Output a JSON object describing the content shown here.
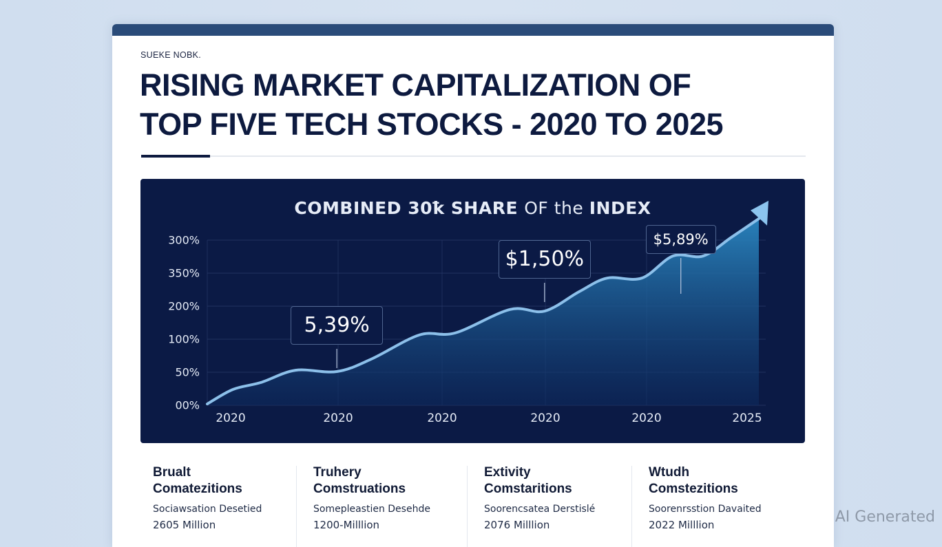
{
  "header": {
    "kicker": "SUEKE NOBK.",
    "title_lines": [
      "RISING MARKET CAPITALIZATION OF",
      "TOP FIVE TECH STOCKS - 2020 TO 2025"
    ]
  },
  "colors": {
    "page_background": "#d3e0f0",
    "top_bar": "#2a4b79",
    "title_text": "#0d1a3f",
    "chart_background": "#0b1a45",
    "line": "#8cc0ea",
    "area_top": "#2a86c0",
    "area_bottom": "#0d2a5e",
    "arrow": "#8cc4ee"
  },
  "chart_data": {
    "type": "area",
    "title_parts": [
      {
        "text": "COMBINED 30ꝁ SHARE ",
        "weight": "bold"
      },
      {
        "text": "OF the ",
        "weight": "light"
      },
      {
        "text": "INDEX",
        "weight": "bold"
      }
    ],
    "xlabel": "",
    "ylabel": "",
    "x_tick_labels": [
      "2020",
      "2020",
      "2020",
      "2020",
      "2020",
      "2025"
    ],
    "y_tick_labels": [
      "00%",
      "50%",
      "100%",
      "200%",
      "350%",
      "300%"
    ],
    "y_scale_note": "values below are expressed in y-tick index units (0 = '00%', 5 = '300%') because printed tick labels are non-monotonic",
    "x_range": [
      2020,
      2025
    ],
    "y_range": [
      0,
      5.9
    ],
    "grid": true,
    "legend": "none",
    "series": [
      {
        "name": "Combined share",
        "points": [
          {
            "x": 2020.0,
            "y": 0.04
          },
          {
            "x": 2020.23,
            "y": 0.48
          },
          {
            "x": 2020.48,
            "y": 0.69
          },
          {
            "x": 2020.79,
            "y": 1.06
          },
          {
            "x": 2021.16,
            "y": 1.02
          },
          {
            "x": 2021.47,
            "y": 1.4
          },
          {
            "x": 2021.9,
            "y": 2.13
          },
          {
            "x": 2022.22,
            "y": 2.19
          },
          {
            "x": 2022.71,
            "y": 2.9
          },
          {
            "x": 2023.02,
            "y": 2.85
          },
          {
            "x": 2023.33,
            "y": 3.44
          },
          {
            "x": 2023.58,
            "y": 3.85
          },
          {
            "x": 2023.89,
            "y": 3.85
          },
          {
            "x": 2024.17,
            "y": 4.52
          },
          {
            "x": 2024.44,
            "y": 4.52
          },
          {
            "x": 2024.69,
            "y": 5.08
          },
          {
            "x": 2025.0,
            "y": 5.9
          }
        ],
        "end_arrow": true
      }
    ],
    "annotations": [
      {
        "text": "5,39%",
        "x": 2021.16,
        "size": "large"
      },
      {
        "text": "$1,50%",
        "x": 2023.02,
        "size": "large"
      },
      {
        "text": "$5,89%",
        "x": 2024.24,
        "size": "small"
      }
    ]
  },
  "stats": [
    {
      "head": [
        "Brualt",
        "Comatezitions"
      ],
      "desc": "Sociawsation Desetied",
      "value": "2605 Million"
    },
    {
      "head": [
        "Truhery",
        "Comstruations"
      ],
      "desc": "Somepleastien Desehde",
      "value": "1200-Milllion"
    },
    {
      "head": [
        "Extivity",
        "Comstaritions"
      ],
      "desc": "Soorencsatea Derstislé",
      "value": "2076 Milllion"
    },
    {
      "head": [
        "Wtudh",
        "Comstezitions"
      ],
      "desc": "Soorenrsstion Davaited",
      "value": "2022 Milllion"
    }
  ],
  "watermark": "AI Generated"
}
